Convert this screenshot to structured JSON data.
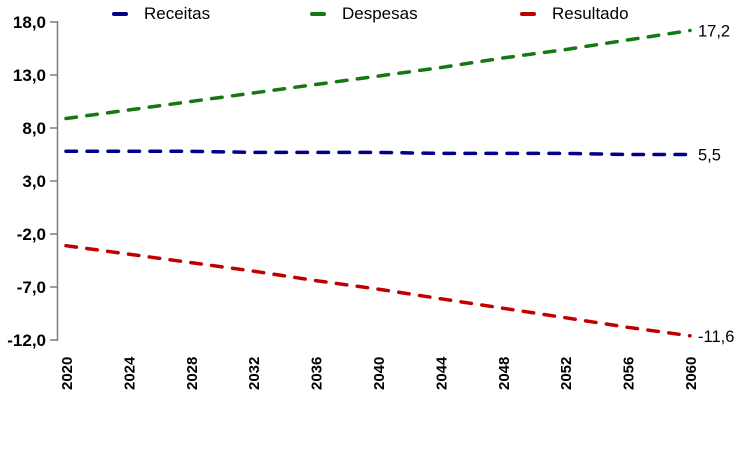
{
  "chart_data": {
    "type": "line",
    "title": "",
    "xlabel": "",
    "ylabel": "",
    "x": [
      2020,
      2024,
      2028,
      2032,
      2036,
      2040,
      2044,
      2048,
      2052,
      2056,
      2060
    ],
    "x_tick_labels": [
      "2020",
      "2024",
      "2028",
      "2032",
      "2036",
      "2040",
      "2044",
      "2048",
      "2052",
      "2056",
      "2060"
    ],
    "ylim": [
      -12,
      18
    ],
    "y_ticks": [
      {
        "value": 18,
        "label": "18,0"
      },
      {
        "value": 13,
        "label": "13,0"
      },
      {
        "value": 8,
        "label": "8,0"
      },
      {
        "value": 3,
        "label": "3,0"
      },
      {
        "value": -2,
        "label": "-2,0"
      },
      {
        "value": -7,
        "label": "-7,0"
      },
      {
        "value": -12,
        "label": "-12,0"
      }
    ],
    "grid": false,
    "legend_position": "bottom",
    "axis_color": "#7F7F7F",
    "line_style": "dashed",
    "series": [
      {
        "name": "Receitas",
        "color": "#00008B",
        "values": [
          5.8,
          5.8,
          5.8,
          5.7,
          5.7,
          5.7,
          5.6,
          5.6,
          5.6,
          5.5,
          5.5
        ],
        "end_label": "5,5"
      },
      {
        "name": "Despesas",
        "color": "#147814",
        "values": [
          8.9,
          9.7,
          10.5,
          11.3,
          12.1,
          12.9,
          13.7,
          14.6,
          15.4,
          16.3,
          17.2
        ],
        "end_label": "17,2"
      },
      {
        "name": "Resultado",
        "color": "#C00000",
        "values": [
          -3.1,
          -3.9,
          -4.7,
          -5.5,
          -6.4,
          -7.2,
          -8.1,
          -9.0,
          -9.9,
          -10.8,
          -11.6
        ],
        "end_label": "-11,6"
      }
    ]
  },
  "legend": {
    "items": [
      {
        "label": "Receitas",
        "color": "#00008B"
      },
      {
        "label": "Despesas",
        "color": "#147814"
      },
      {
        "label": "Resultado",
        "color": "#C00000"
      }
    ]
  }
}
